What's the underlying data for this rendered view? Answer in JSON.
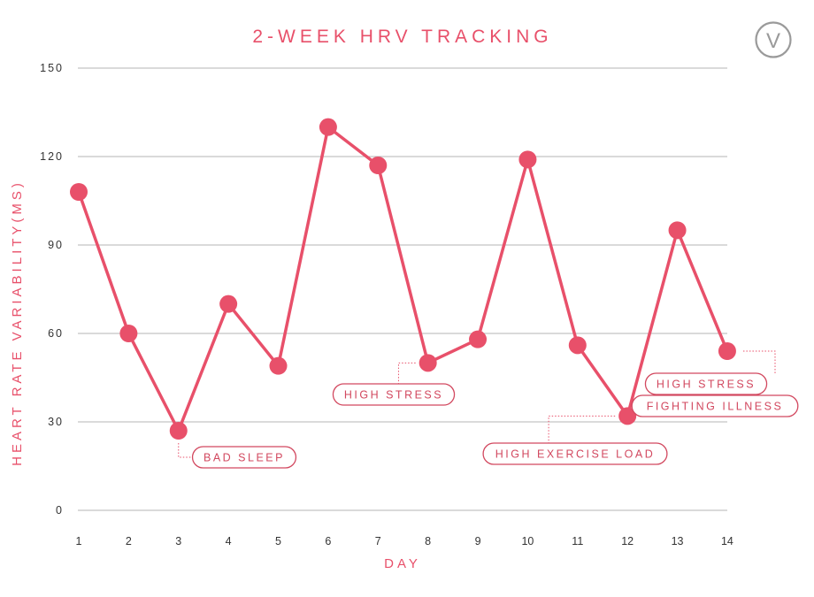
{
  "colors": {
    "accent": "#e8506a",
    "grid": "#b5b5b5",
    "text": "#333333",
    "logo": "#9a9a9a"
  },
  "logo": {
    "icon": "v-circle-logo-icon",
    "letter": "V"
  },
  "chart_data": {
    "type": "line",
    "title": "2-WEEK HRV TRACKING",
    "xlabel": "DAY",
    "ylabel": "HEART RATE VARIABILITY(MS)",
    "ylim": [
      0,
      150
    ],
    "yticks": [
      0,
      30,
      60,
      90,
      120,
      150
    ],
    "grid": true,
    "categories": [
      "1",
      "2",
      "3",
      "4",
      "5",
      "6",
      "7",
      "8",
      "9",
      "10",
      "11",
      "12",
      "13",
      "14"
    ],
    "series": [
      {
        "name": "HRV",
        "values": [
          108,
          60,
          27,
          70,
          49,
          130,
          117,
          50,
          58,
          119,
          56,
          32,
          95,
          54
        ]
      }
    ],
    "annotations": [
      {
        "day": 3,
        "labels": [
          "BAD SLEEP"
        ]
      },
      {
        "day": 8,
        "labels": [
          "HIGH STRESS"
        ]
      },
      {
        "day": 12,
        "labels": [
          "HIGH EXERCISE LOAD"
        ]
      },
      {
        "day": 14,
        "labels": [
          "HIGH STRESS",
          "FIGHTING ILLNESS"
        ]
      }
    ]
  }
}
